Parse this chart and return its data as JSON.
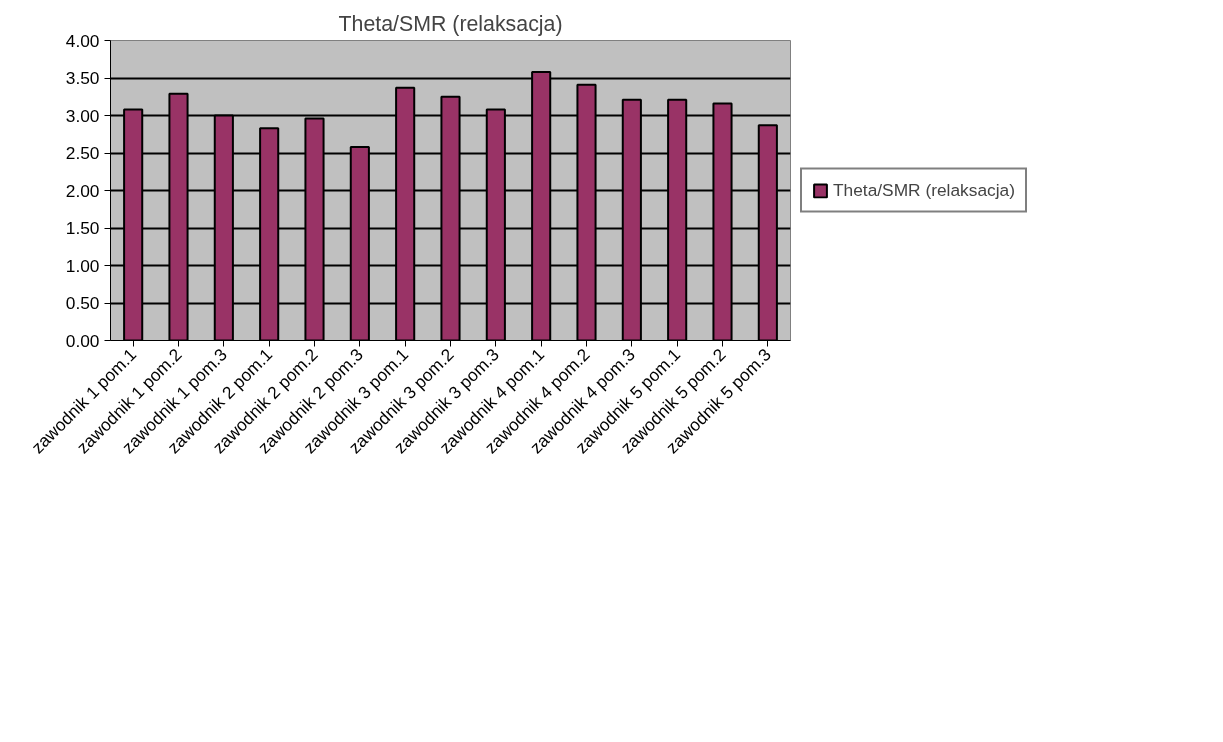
{
  "chart_data": {
    "type": "bar",
    "title": "Theta/SMR (relaksacja)",
    "categories": [
      "zawodnik 1 pom.1",
      "zawodnik 1 pom.2",
      "zawodnik 1 pom.3",
      "zawodnik 2 pom.1",
      "zawodnik 2 pom.2",
      "zawodnik 2 pom.3",
      "zawodnik 3 pom.1",
      "zawodnik 3 pom.2",
      "zawodnik 3 pom.3",
      "zawodnik 4 pom.1",
      "zawodnik 4 pom.2",
      "zawodnik 4 pom.3",
      "zawodnik 5 pom.1",
      "zawodnik 5 pom.2",
      "zawodnik 5 pom.3"
    ],
    "series": [
      {
        "name": "Theta/SMR (relaksacja)",
        "color": "#993366",
        "values": [
          3.08,
          3.29,
          3.0,
          2.83,
          2.96,
          2.58,
          3.37,
          3.25,
          3.08,
          3.58,
          3.41,
          3.21,
          3.21,
          3.16,
          2.87
        ]
      }
    ],
    "ylim": [
      0,
      4
    ],
    "yticks": [
      {
        "value": 0,
        "label": "0.00"
      },
      {
        "value": 0.5,
        "label": "0.50"
      },
      {
        "value": 1,
        "label": "1.00"
      },
      {
        "value": 1.5,
        "label": "1.50"
      },
      {
        "value": 2,
        "label": "2.00"
      },
      {
        "value": 2.5,
        "label": "2.50"
      },
      {
        "value": 3,
        "label": "3.00"
      },
      {
        "value": 3.5,
        "label": "3.50"
      },
      {
        "value": 4,
        "label": "4.00"
      }
    ],
    "grid": "y",
    "legend": "right"
  }
}
